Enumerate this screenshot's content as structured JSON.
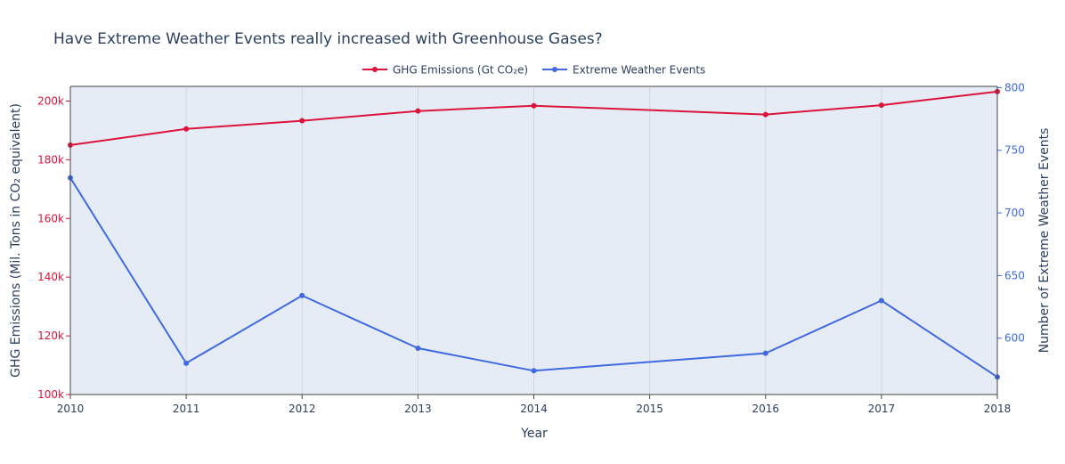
{
  "chart_data": {
    "type": "line",
    "title": "Have Extreme Weather Events really increased with Greenhouse Gases?",
    "xlabel": "Year",
    "ylabel_left": "GHG Emissions (Mil. Tons in CO₂ equivalent)",
    "ylabel_right": "Number of Extreme Weather Events",
    "x": [
      2010,
      2011,
      2012,
      2013,
      2014,
      2016,
      2017,
      2018
    ],
    "x_ticks": [
      "2010",
      "2011",
      "2012",
      "2013",
      "2014",
      "2015",
      "2016",
      "2017",
      "2018"
    ],
    "xlim": [
      2010,
      2018
    ],
    "ylim_left": [
      100000,
      205000
    ],
    "ylim_right": [
      555,
      801
    ],
    "y_ticks_left": [
      "100k",
      "120k",
      "140k",
      "160k",
      "180k",
      "200k"
    ],
    "y_ticks_left_values": [
      100000,
      120000,
      140000,
      160000,
      180000,
      200000
    ],
    "y_ticks_right": [
      "600",
      "650",
      "700",
      "750",
      "800"
    ],
    "y_ticks_right_values": [
      600,
      650,
      700,
      750,
      800
    ],
    "series": [
      {
        "name": "GHG Emissions (Gt CO₂e)",
        "axis": "left",
        "color": "#dc143c",
        "values": [
          185000,
          190500,
          193300,
          196600,
          198400,
          195400,
          198600,
          203200
        ]
      },
      {
        "name": "Extreme Weather Events",
        "axis": "right",
        "color": "#4169e1",
        "values": [
          728,
          580,
          634,
          592,
          574,
          588,
          630,
          569
        ]
      }
    ],
    "grid": true,
    "legend_position": "top-center"
  }
}
